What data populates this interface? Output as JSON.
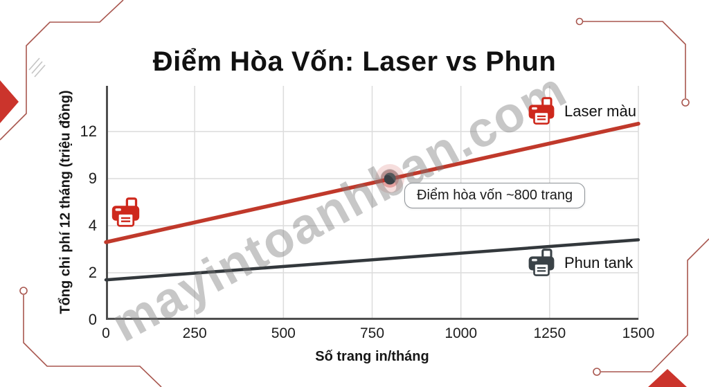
{
  "title": "Điểm Hòa Vốn: Laser vs Phun",
  "watermark": "mayintoanhban.com",
  "legend": {
    "laser_label": "Laser màu",
    "phun_label": "Phun tank"
  },
  "annotation": {
    "label": "Điểm hòa vốn ~800 trang"
  },
  "axes": {
    "x_label": "Số trang in/tháng",
    "y_label": "Tổng chi phí 12 tháng (triệu đồng)"
  },
  "colors": {
    "laser_line": "#C0392B",
    "phun_line": "#33383C",
    "laser_icon": "#CE281C",
    "phun_icon": "#3A4247",
    "decor_red": "#A8564E",
    "decor_solid_red": "#CB342C",
    "grid": "#DCDCDC",
    "axis": "#4F4F4F",
    "dot_center": "#3A4045",
    "dot_glow": "#C4302B"
  },
  "chart_data": {
    "type": "line",
    "title": "Điểm Hòa Vốn: Laser vs Phun",
    "xlabel": "Số trang in/tháng",
    "ylabel": "Tổng chi phí 12 tháng (triệu đồng)",
    "xlim": [
      0,
      1500
    ],
    "x_ticks": [
      0,
      250,
      500,
      750,
      1000,
      1250,
      1500
    ],
    "y_ticks": [
      0,
      2,
      4,
      9,
      12
    ],
    "y_axis_note": "tick labels 0,2,4,9,12 are evenly spaced (non-linear stylized axis), units: triệu đồng",
    "grid": true,
    "series": [
      {
        "name": "Laser màu",
        "color": "#C0392B",
        "points": [
          {
            "x": 0,
            "y": 3.3
          },
          {
            "x": 1500,
            "y": 12.5
          }
        ]
      },
      {
        "name": "Phun tank",
        "color": "#33383C",
        "points": [
          {
            "x": 0,
            "y": 1.7
          },
          {
            "x": 1500,
            "y": 3.4
          }
        ]
      }
    ],
    "annotation": {
      "label": "Điểm hòa vốn ~800 trang",
      "x": 800,
      "y": 9
    },
    "legend_position": "inline-right"
  }
}
